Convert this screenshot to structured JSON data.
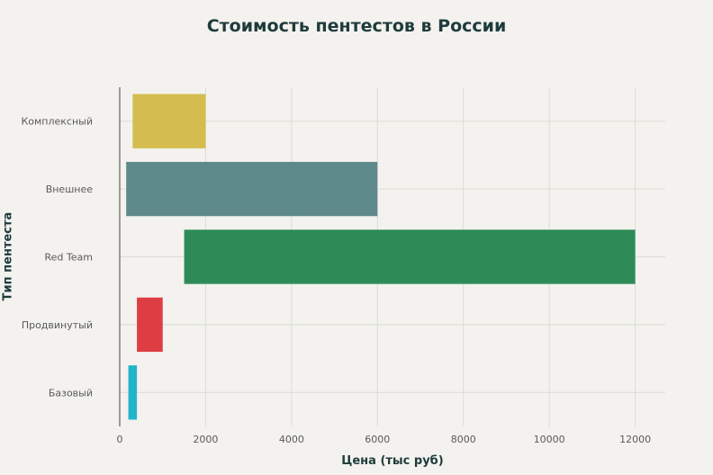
{
  "chart_data": {
    "type": "bar",
    "orientation": "horizontal",
    "floating": true,
    "title": "Стоимость пентестов в России",
    "xlabel": "Цена (тыс руб)",
    "ylabel": "Тип пентеста",
    "xlim": [
      0,
      12700
    ],
    "xticks": [
      "0",
      "2000",
      "4000",
      "6000",
      "8000",
      "10000",
      "12000"
    ],
    "grid": true,
    "categories": [
      "Комплексный",
      "Внешнее",
      "Red Team",
      "Продвинутый",
      "Базовый"
    ],
    "ranges": [
      {
        "start": 300,
        "end": 2000,
        "color": "#d4bd4e"
      },
      {
        "start": 150,
        "end": 6000,
        "color": "#5f8a8b"
      },
      {
        "start": 1500,
        "end": 12000,
        "color": "#2e8b57"
      },
      {
        "start": 400,
        "end": 1000,
        "color": "#de3d44"
      },
      {
        "start": 200,
        "end": 400,
        "color": "#22b4cc"
      }
    ]
  }
}
